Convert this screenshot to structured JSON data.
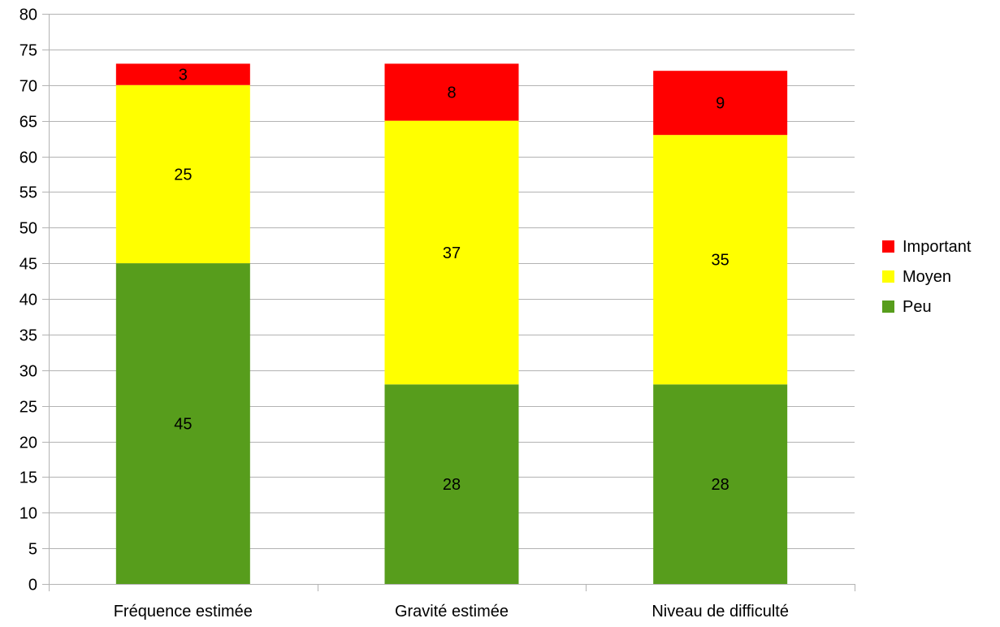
{
  "chart_data": {
    "type": "bar",
    "stacked": true,
    "categories": [
      "Fréquence estimée",
      "Gravité estimée",
      "Niveau de difficulté"
    ],
    "series": [
      {
        "name": "Peu",
        "values": [
          45,
          28,
          28
        ],
        "color": "#579d1c"
      },
      {
        "name": "Moyen",
        "values": [
          25,
          37,
          35
        ],
        "color": "#ffff00"
      },
      {
        "name": "Important",
        "values": [
          3,
          8,
          9
        ],
        "color": "#ff0000"
      }
    ],
    "legend_order": [
      "Important",
      "Moyen",
      "Peu"
    ],
    "title": "",
    "xlabel": "",
    "ylabel": "",
    "ylim": [
      0,
      80
    ],
    "ytick_step": 5,
    "grid": true,
    "legend_position": "right",
    "data_labels": true
  }
}
